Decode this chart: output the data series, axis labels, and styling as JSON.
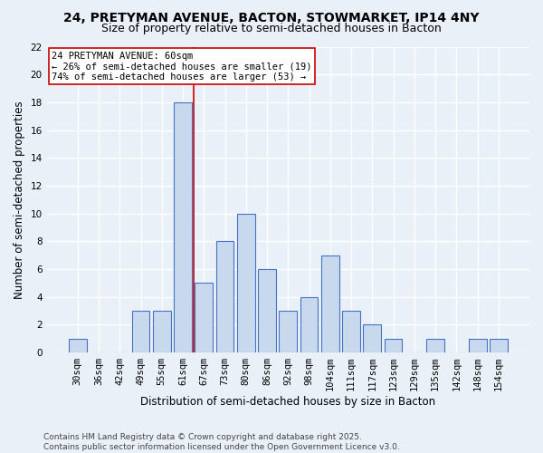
{
  "title1": "24, PRETYMAN AVENUE, BACTON, STOWMARKET, IP14 4NY",
  "title2": "Size of property relative to semi-detached houses in Bacton",
  "xlabel": "Distribution of semi-detached houses by size in Bacton",
  "ylabel": "Number of semi-detached properties",
  "footer": "Contains HM Land Registry data © Crown copyright and database right 2025.\nContains public sector information licensed under the Open Government Licence v3.0.",
  "categories": [
    "30sqm",
    "36sqm",
    "42sqm",
    "49sqm",
    "55sqm",
    "61sqm",
    "67sqm",
    "73sqm",
    "80sqm",
    "86sqm",
    "92sqm",
    "98sqm",
    "104sqm",
    "111sqm",
    "117sqm",
    "123sqm",
    "129sqm",
    "135sqm",
    "142sqm",
    "148sqm",
    "154sqm"
  ],
  "values": [
    1,
    0,
    0,
    3,
    3,
    18,
    5,
    8,
    10,
    6,
    3,
    4,
    7,
    3,
    2,
    1,
    0,
    1,
    0,
    1,
    1
  ],
  "bar_color": "#c8d9ed",
  "bar_edge_color": "#4472c4",
  "highlight_index": 5,
  "highlight_line_color": "#cc0000",
  "annotation_text": "24 PRETYMAN AVENUE: 60sqm\n← 26% of semi-detached houses are smaller (19)\n74% of semi-detached houses are larger (53) →",
  "annotation_box_color": "#ffffff",
  "annotation_box_edge_color": "#cc0000",
  "ylim": [
    0,
    22
  ],
  "yticks": [
    0,
    2,
    4,
    6,
    8,
    10,
    12,
    14,
    16,
    18,
    20,
    22
  ],
  "bg_color": "#eaf0f8",
  "plot_bg_color": "#eaf0f8",
  "grid_color": "#ffffff",
  "title_fontsize": 10,
  "subtitle_fontsize": 9,
  "axis_label_fontsize": 8.5,
  "tick_fontsize": 7.5,
  "footer_fontsize": 6.5
}
